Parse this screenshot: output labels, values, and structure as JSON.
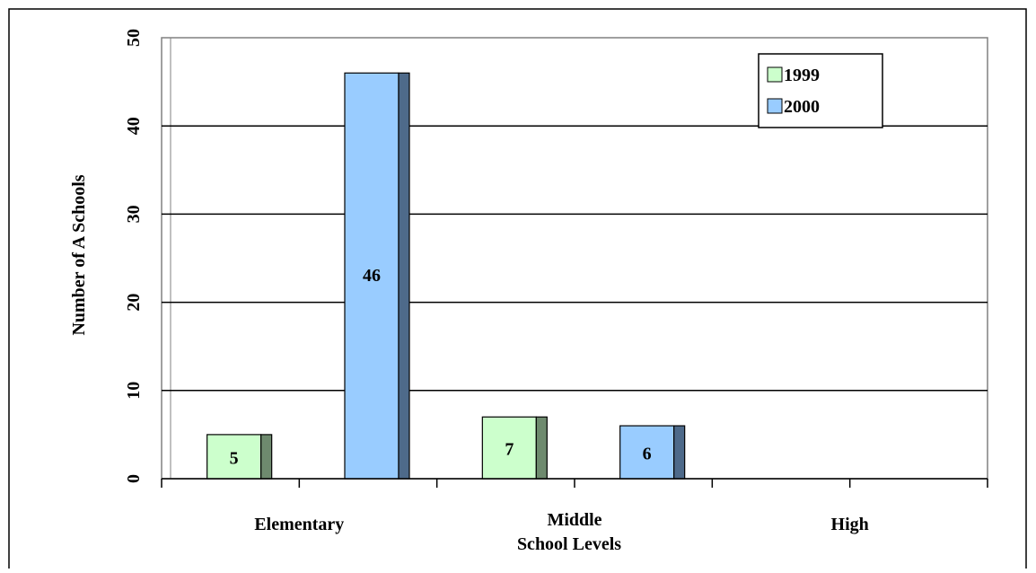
{
  "chart_data": {
    "type": "bar",
    "title": "",
    "xlabel": "School Levels",
    "ylabel": "Number of A Schools",
    "categories": [
      "Elementary",
      "Middle",
      "High"
    ],
    "series": [
      {
        "name": "1999",
        "values": [
          5,
          7,
          null
        ]
      },
      {
        "name": "2000",
        "values": [
          46,
          6,
          null
        ]
      }
    ],
    "data_labels": [
      [
        "5",
        "7",
        ""
      ],
      [
        "46",
        "6",
        ""
      ]
    ],
    "yticks": [
      "0",
      "10",
      "20",
      "30",
      "40",
      "50"
    ],
    "ylim": [
      0,
      50
    ],
    "grid": true,
    "legend_position": "top-right",
    "colors": {
      "series_fill": [
        "#ccffcc",
        "#99ccff"
      ],
      "series_side": [
        "#6e8a6e",
        "#4e6a8a"
      ],
      "gridline": "#000000",
      "axis": "#808080",
      "border": "#000000"
    }
  }
}
